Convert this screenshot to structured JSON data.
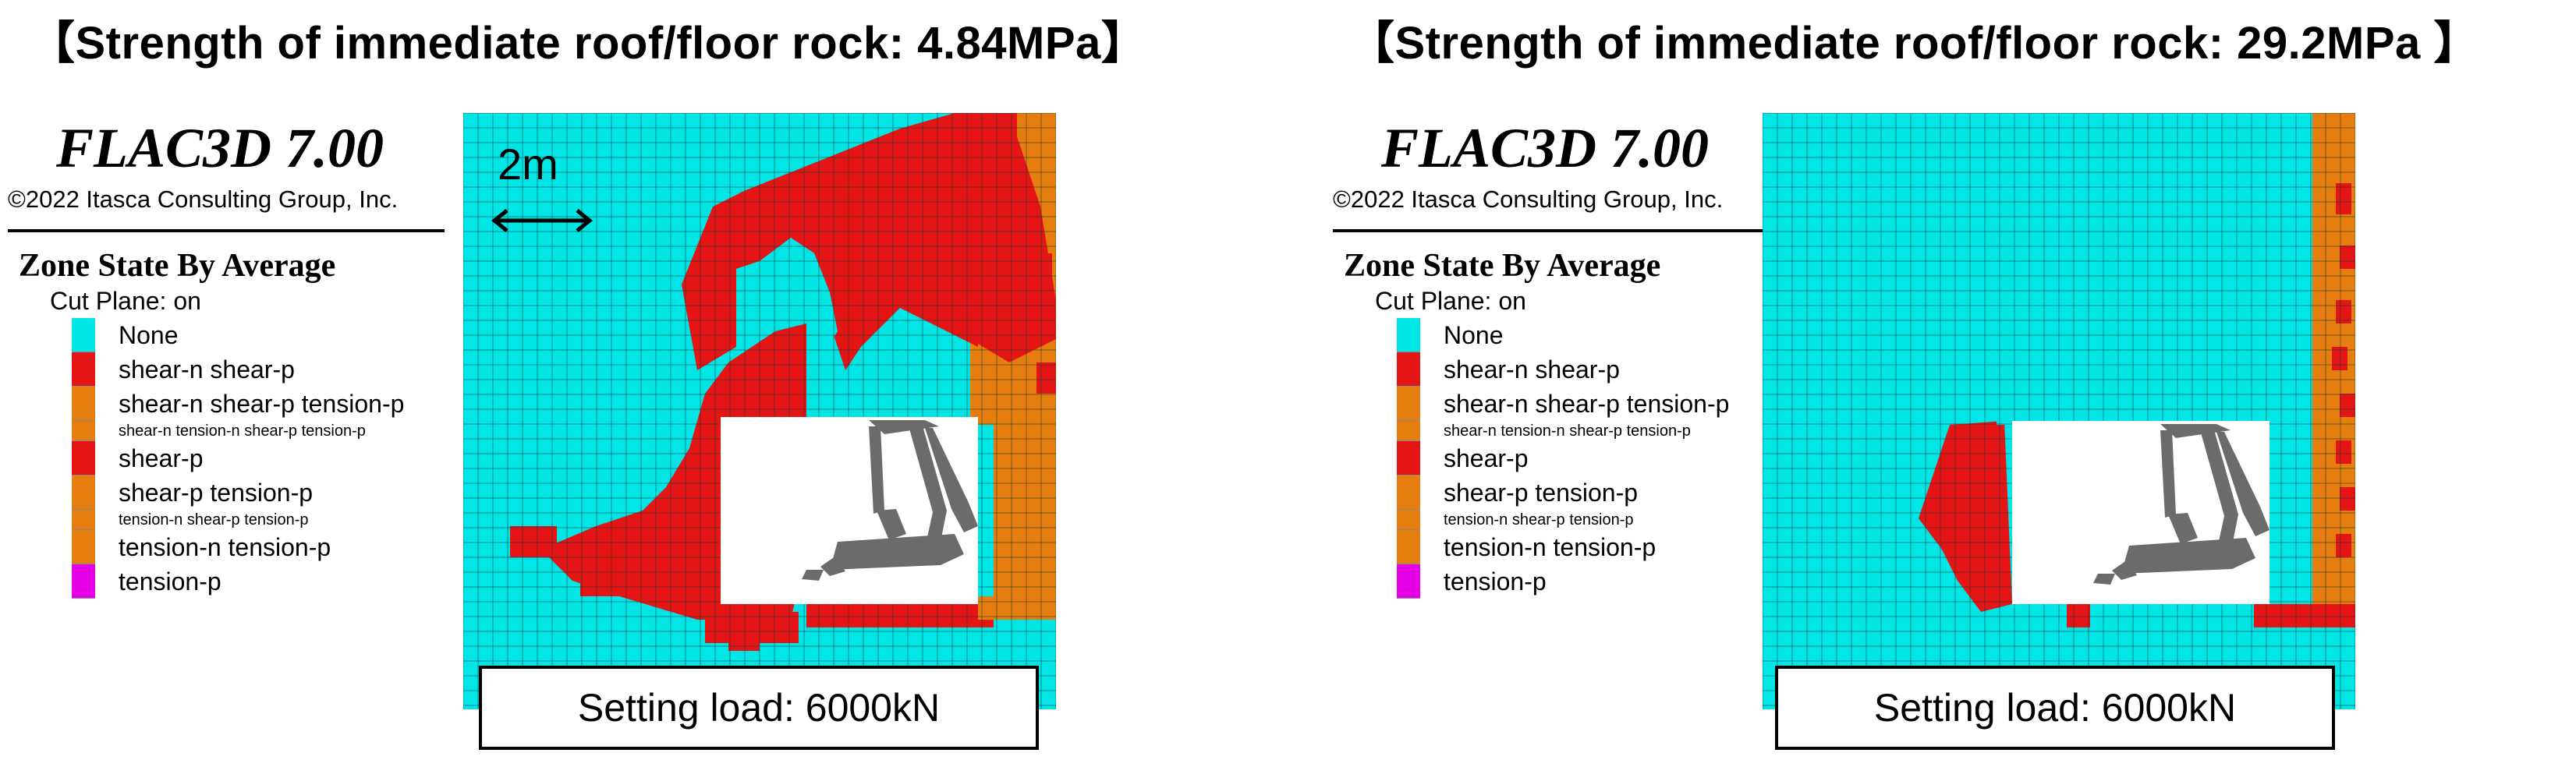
{
  "colors": {
    "none": "#00e6e6",
    "shear_n_shear_p": "#e61515",
    "tension_states": "#e67e0f",
    "shear_p": "#e61515",
    "tension_p": "#e600e6",
    "grid_line": "#0f3a3a",
    "support": "#6b6b6b"
  },
  "panels": [
    {
      "title": "【Strength of immediate roof/floor rock: 4.84MPa】",
      "app_name": "FLAC3D 7.00",
      "copyright": "©2022 Itasca Consulting Group, Inc.",
      "legend_title": "Zone State By Average",
      "cut_plane": "Cut Plane: on",
      "states": [
        {
          "label": "None",
          "color": "#00e6e6"
        },
        {
          "label": "shear-n shear-p",
          "color": "#e61515"
        },
        {
          "label": "shear-n shear-p tension-p",
          "color": "#e67e0f"
        },
        {
          "label": "shear-n tension-n shear-p tension-p",
          "color": "#e67e0f"
        },
        {
          "label": "shear-p",
          "color": "#e61515"
        },
        {
          "label": "shear-p tension-p",
          "color": "#e67e0f"
        },
        {
          "label": "tension-n shear-p tension-p",
          "color": "#e67e0f"
        },
        {
          "label": "tension-n tension-p",
          "color": "#e67e0f"
        },
        {
          "label": "tension-p",
          "color": "#e600e6"
        }
      ],
      "scale_label": "2m",
      "load_label": "Setting load: 6000kN"
    },
    {
      "title": "【Strength of immediate roof/floor rock: 29.2MPa 】",
      "app_name": "FLAC3D 7.00",
      "copyright": "©2022 Itasca Consulting Group, Inc.",
      "legend_title": "Zone State By Average",
      "cut_plane": "Cut Plane: on",
      "states": [
        {
          "label": "None",
          "color": "#00e6e6"
        },
        {
          "label": "shear-n shear-p",
          "color": "#e61515"
        },
        {
          "label": "shear-n shear-p tension-p",
          "color": "#e67e0f"
        },
        {
          "label": "shear-n tension-n shear-p tension-p",
          "color": "#e67e0f"
        },
        {
          "label": "shear-p",
          "color": "#e61515"
        },
        {
          "label": "shear-p tension-p",
          "color": "#e67e0f"
        },
        {
          "label": "tension-n shear-p tension-p",
          "color": "#e67e0f"
        },
        {
          "label": "tension-n tension-p",
          "color": "#e67e0f"
        },
        {
          "label": "tension-p",
          "color": "#e600e6"
        }
      ],
      "load_label": "Setting load: 6000kN"
    }
  ]
}
